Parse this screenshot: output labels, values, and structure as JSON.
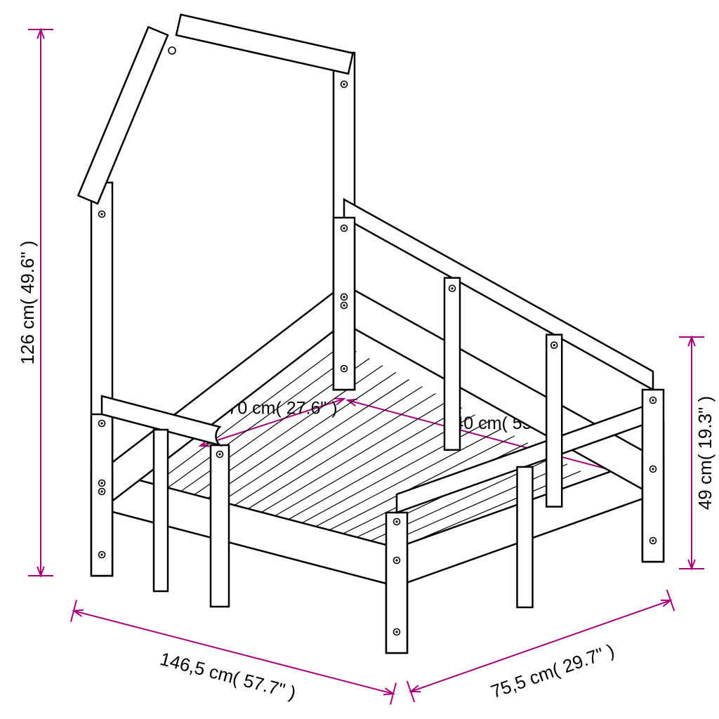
{
  "colors": {
    "accent": "#a6007c",
    "line": "#000000",
    "background": "#ffffff",
    "screw": "#000000"
  },
  "stroke": {
    "bed_main": 2.5,
    "bed_thin": 1.8,
    "dim": 2
  },
  "dimensions": {
    "height_total": {
      "cm": "126 cm",
      "in": "49.6\""
    },
    "height_side": {
      "cm": "49 cm",
      "in": "19.3\""
    },
    "length_outer": {
      "cm": "146,5 cm",
      "in": "57.7\""
    },
    "width_outer": {
      "cm": "75,5 cm",
      "in": "29.7\""
    },
    "mattress_w": {
      "cm": "70 cm",
      "in": "27.6\""
    },
    "mattress_l": {
      "cm": "140 cm",
      "in": "55.1\""
    }
  }
}
